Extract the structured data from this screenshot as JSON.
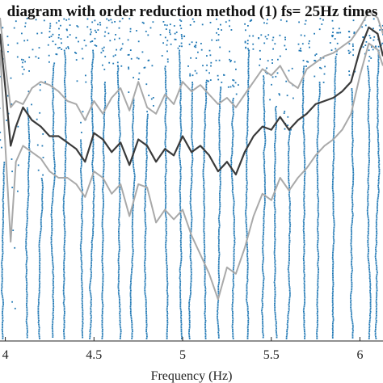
{
  "chart_data": {
    "type": "scatter",
    "title": "diagram with order reduction method (1) fs= 25Hz times",
    "xlabel": "Frequency (Hz)",
    "ylabel": "",
    "xlim": [
      3.97,
      6.13
    ],
    "ylim": [
      0,
      1
    ],
    "x_ticks": [
      4,
      4.5,
      5,
      5.5,
      6
    ],
    "x_tick_labels": [
      "4",
      "4.5",
      "5",
      "5.5",
      "6"
    ],
    "grid": false,
    "legend": "none",
    "colors": {
      "points": "#1f77b4",
      "mean_curve": "#3a3a3a",
      "bound_curves": "#a9a9a9"
    },
    "mode_tracks": [
      {
        "x": 3.99,
        "y_top": 0.55
      },
      {
        "x": 4.04,
        "y_top": 0.0
      },
      {
        "x": 4.12,
        "y_top": 0.72
      },
      {
        "x": 4.2,
        "y_top": 0.5
      },
      {
        "x": 4.27,
        "y_top": 0.86
      },
      {
        "x": 4.33,
        "y_top": 0.9
      },
      {
        "x": 4.42,
        "y_top": 0.62
      },
      {
        "x": 4.49,
        "y_top": 0.9
      },
      {
        "x": 4.56,
        "y_top": 0.8
      },
      {
        "x": 4.63,
        "y_top": 0.85
      },
      {
        "x": 4.72,
        "y_top": 0.75
      },
      {
        "x": 4.8,
        "y_top": 0.7
      },
      {
        "x": 4.9,
        "y_top": 0.85
      },
      {
        "x": 4.98,
        "y_top": 0.9
      },
      {
        "x": 5.05,
        "y_top": 0.8
      },
      {
        "x": 5.13,
        "y_top": 0.8
      },
      {
        "x": 5.21,
        "y_top": 0.78
      },
      {
        "x": 5.28,
        "y_top": 0.75
      },
      {
        "x": 5.37,
        "y_top": 0.9
      },
      {
        "x": 5.45,
        "y_top": 0.82
      },
      {
        "x": 5.52,
        "y_top": 0.72
      },
      {
        "x": 5.6,
        "y_top": 0.65
      },
      {
        "x": 5.68,
        "y_top": 0.85
      },
      {
        "x": 5.77,
        "y_top": 0.8
      },
      {
        "x": 5.86,
        "y_top": 0.88
      },
      {
        "x": 5.95,
        "y_top": 0.78
      },
      {
        "x": 6.04,
        "y_top": 0.85
      },
      {
        "x": 6.1,
        "y_top": 0.9
      }
    ],
    "series": [
      {
        "style": "mean",
        "x": [
          3.97,
          4.0,
          4.03,
          4.06,
          4.1,
          4.15,
          4.2,
          4.25,
          4.3,
          4.35,
          4.4,
          4.45,
          4.5,
          4.55,
          4.6,
          4.65,
          4.7,
          4.75,
          4.8,
          4.85,
          4.9,
          4.95,
          5.0,
          5.05,
          5.1,
          5.15,
          5.2,
          5.25,
          5.3,
          5.35,
          5.4,
          5.45,
          5.5,
          5.55,
          5.6,
          5.65,
          5.7,
          5.75,
          5.8,
          5.85,
          5.9,
          5.95,
          6.0,
          6.05,
          6.1,
          6.13
        ],
        "y": [
          0.95,
          0.78,
          0.6,
          0.66,
          0.72,
          0.68,
          0.66,
          0.63,
          0.63,
          0.61,
          0.59,
          0.55,
          0.64,
          0.62,
          0.58,
          0.61,
          0.54,
          0.62,
          0.6,
          0.55,
          0.59,
          0.57,
          0.63,
          0.58,
          0.6,
          0.57,
          0.52,
          0.55,
          0.51,
          0.58,
          0.63,
          0.66,
          0.65,
          0.69,
          0.65,
          0.68,
          0.7,
          0.73,
          0.74,
          0.75,
          0.77,
          0.8,
          0.9,
          0.97,
          0.95,
          0.88
        ]
      },
      {
        "style": "upper",
        "x": [
          3.97,
          4.0,
          4.03,
          4.06,
          4.1,
          4.15,
          4.2,
          4.25,
          4.3,
          4.35,
          4.4,
          4.45,
          4.5,
          4.55,
          4.6,
          4.65,
          4.7,
          4.75,
          4.8,
          4.85,
          4.9,
          4.95,
          5.0,
          5.05,
          5.1,
          5.15,
          5.2,
          5.25,
          5.3,
          5.35,
          5.4,
          5.45,
          5.5,
          5.55,
          5.6,
          5.65,
          5.7,
          5.75,
          5.8,
          5.85,
          5.9,
          5.95,
          6.0,
          6.05,
          6.1,
          6.13
        ],
        "y": [
          1.0,
          0.85,
          0.72,
          0.74,
          0.73,
          0.78,
          0.8,
          0.79,
          0.77,
          0.74,
          0.73,
          0.68,
          0.74,
          0.7,
          0.75,
          0.78,
          0.71,
          0.8,
          0.72,
          0.7,
          0.76,
          0.73,
          0.8,
          0.77,
          0.79,
          0.76,
          0.73,
          0.75,
          0.72,
          0.76,
          0.8,
          0.84,
          0.82,
          0.85,
          0.8,
          0.78,
          0.84,
          0.86,
          0.88,
          0.89,
          0.91,
          0.93,
          0.97,
          1.02,
          1.0,
          0.95
        ]
      },
      {
        "style": "lower",
        "x": [
          3.97,
          4.0,
          4.03,
          4.06,
          4.1,
          4.15,
          4.2,
          4.25,
          4.3,
          4.35,
          4.4,
          4.45,
          4.5,
          4.55,
          4.6,
          4.65,
          4.7,
          4.75,
          4.8,
          4.85,
          4.9,
          4.95,
          5.0,
          5.05,
          5.1,
          5.15,
          5.2,
          5.25,
          5.3,
          5.35,
          5.4,
          5.45,
          5.5,
          5.55,
          5.6,
          5.65,
          5.7,
          5.75,
          5.8,
          5.85,
          5.9,
          5.95,
          6.0,
          6.05,
          6.1,
          6.13
        ],
        "y": [
          0.9,
          0.6,
          0.3,
          0.55,
          0.6,
          0.58,
          0.56,
          0.52,
          0.5,
          0.5,
          0.48,
          0.44,
          0.52,
          0.5,
          0.45,
          0.48,
          0.38,
          0.48,
          0.47,
          0.36,
          0.4,
          0.37,
          0.4,
          0.32,
          0.26,
          0.2,
          0.12,
          0.22,
          0.2,
          0.28,
          0.38,
          0.45,
          0.43,
          0.5,
          0.46,
          0.5,
          0.53,
          0.57,
          0.6,
          0.62,
          0.65,
          0.7,
          0.82,
          0.92,
          0.9,
          0.85
        ]
      }
    ]
  }
}
